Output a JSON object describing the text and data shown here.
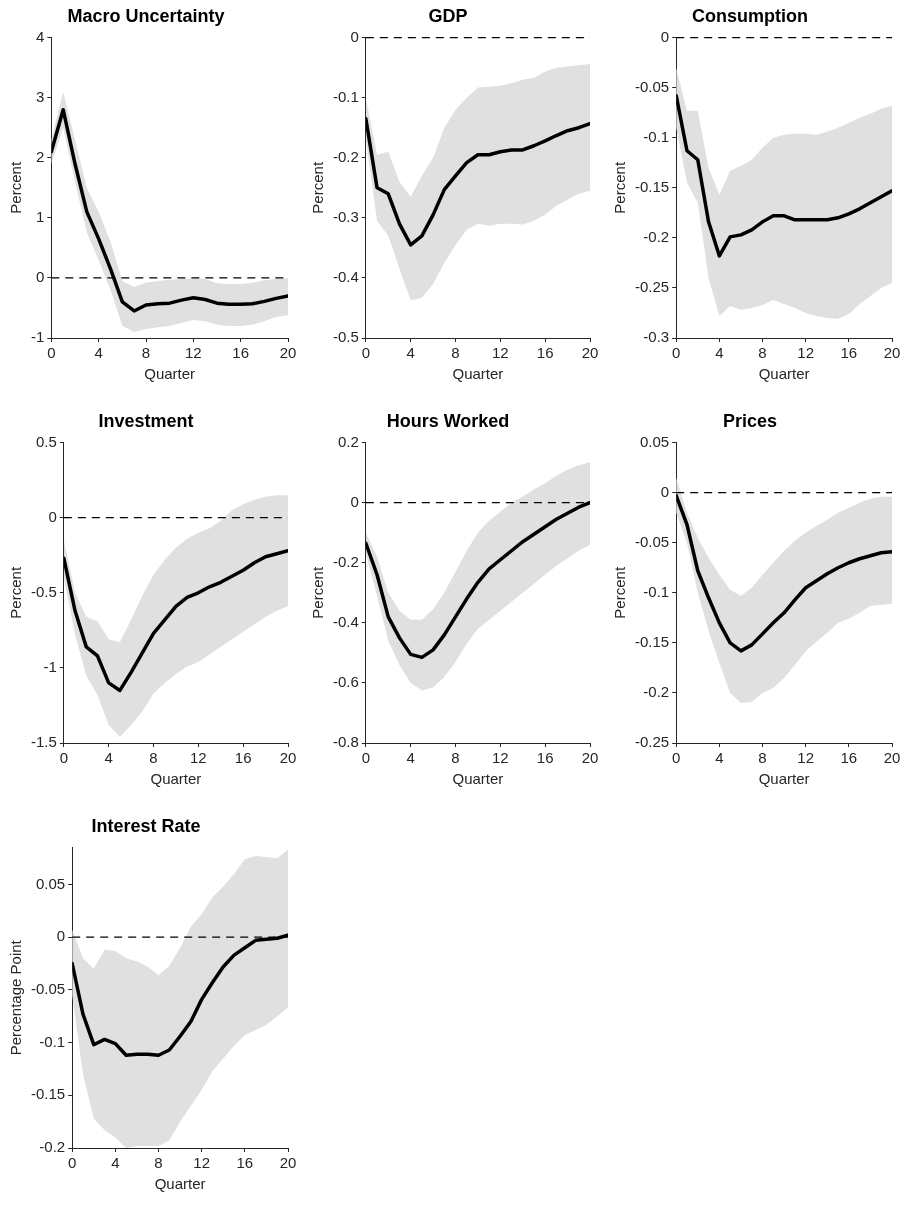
{
  "chart_data": [
    {
      "type": "line",
      "title": "Macro Uncertainty",
      "xlabel": "Quarter",
      "ylabel": "Percent",
      "x": [
        0,
        1,
        2,
        3,
        4,
        5,
        6,
        7,
        8,
        9,
        10,
        11,
        12,
        13,
        14,
        15,
        16,
        17,
        18,
        19,
        20
      ],
      "xlim": [
        0,
        20
      ],
      "xticks": [
        0,
        4,
        8,
        12,
        16,
        20
      ],
      "ylim": [
        -1,
        4
      ],
      "yticks": [
        -1,
        0,
        1,
        2,
        3,
        4
      ],
      "grid": false,
      "legend": false,
      "marker": "none",
      "line_style": "solid",
      "series": [
        {
          "color": "#000000",
          "values": [
            2.1,
            2.8,
            1.9,
            1.1,
            0.65,
            0.15,
            -0.4,
            -0.55,
            -0.45,
            -0.43,
            -0.42,
            -0.37,
            -0.33,
            -0.36,
            -0.42,
            -0.44,
            -0.44,
            -0.43,
            -0.39,
            -0.34,
            -0.3
          ],
          "upper": [
            2.3,
            3.1,
            2.3,
            1.5,
            1.1,
            0.6,
            -0.05,
            -0.15,
            -0.08,
            -0.05,
            -0.03,
            -0.02,
            -0.01,
            -0.02,
            -0.09,
            -0.1,
            -0.1,
            -0.08,
            -0.04,
            -0.02,
            0
          ],
          "lower": [
            1.9,
            2.5,
            1.6,
            0.75,
            0.3,
            -0.2,
            -0.8,
            -0.9,
            -0.85,
            -0.82,
            -0.8,
            -0.75,
            -0.7,
            -0.72,
            -0.78,
            -0.8,
            -0.8,
            -0.78,
            -0.72,
            -0.65,
            -0.62
          ]
        }
      ],
      "ref_lines": [
        {
          "axis": "y",
          "value": 0,
          "color": "#000000",
          "line_style": "dashed"
        }
      ]
    },
    {
      "type": "line",
      "title": "GDP",
      "xlabel": "Quarter",
      "ylabel": "Percent",
      "x": [
        0,
        1,
        2,
        3,
        4,
        5,
        6,
        7,
        8,
        9,
        10,
        11,
        12,
        13,
        14,
        15,
        16,
        17,
        18,
        19,
        20
      ],
      "xlim": [
        0,
        20
      ],
      "xticks": [
        0,
        4,
        8,
        12,
        16,
        20
      ],
      "ylim": [
        -0.5,
        0
      ],
      "yticks": [
        -0.5,
        -0.4,
        -0.3,
        -0.2,
        -0.1,
        0
      ],
      "grid": false,
      "legend": false,
      "marker": "none",
      "line_style": "solid",
      "series": [
        {
          "color": "#000000",
          "values": [
            -0.135,
            -0.25,
            -0.26,
            -0.31,
            -0.345,
            -0.33,
            -0.295,
            -0.253,
            -0.23,
            -0.208,
            -0.195,
            -0.195,
            -0.19,
            -0.187,
            -0.187,
            -0.18,
            -0.172,
            -0.163,
            -0.155,
            -0.15,
            -0.143
          ],
          "upper": [
            -0.1,
            -0.195,
            -0.19,
            -0.24,
            -0.265,
            -0.23,
            -0.2,
            -0.15,
            -0.12,
            -0.1,
            -0.083,
            -0.082,
            -0.08,
            -0.076,
            -0.07,
            -0.067,
            -0.057,
            -0.05,
            -0.048,
            -0.046,
            -0.044
          ],
          "lower": [
            -0.17,
            -0.305,
            -0.33,
            -0.385,
            -0.437,
            -0.433,
            -0.41,
            -0.375,
            -0.345,
            -0.32,
            -0.31,
            -0.313,
            -0.31,
            -0.31,
            -0.311,
            -0.305,
            -0.295,
            -0.28,
            -0.27,
            -0.26,
            -0.255
          ]
        }
      ],
      "ref_lines": [
        {
          "axis": "y",
          "value": 0,
          "color": "#000000",
          "line_style": "dashed"
        }
      ]
    },
    {
      "type": "line",
      "title": "Consumption",
      "xlabel": "Quarter",
      "ylabel": "Percent",
      "x": [
        0,
        1,
        2,
        3,
        4,
        5,
        6,
        7,
        8,
        9,
        10,
        11,
        12,
        13,
        14,
        15,
        16,
        17,
        18,
        19,
        20
      ],
      "xlim": [
        0,
        20
      ],
      "xticks": [
        0,
        4,
        8,
        12,
        16,
        20
      ],
      "ylim": [
        -0.3,
        0
      ],
      "yticks": [
        -0.3,
        -0.25,
        -0.2,
        -0.15,
        -0.1,
        -0.05,
        0
      ],
      "grid": false,
      "legend": false,
      "marker": "none",
      "line_style": "solid",
      "series": [
        {
          "color": "#000000",
          "values": [
            -0.058,
            -0.113,
            -0.122,
            -0.184,
            -0.218,
            -0.199,
            -0.197,
            -0.192,
            -0.184,
            -0.178,
            -0.178,
            -0.182,
            -0.182,
            -0.182,
            -0.182,
            -0.18,
            -0.176,
            -0.171,
            -0.165,
            -0.159,
            -0.153
          ],
          "upper": [
            -0.03,
            -0.073,
            -0.073,
            -0.13,
            -0.157,
            -0.133,
            -0.128,
            -0.122,
            -0.11,
            -0.1,
            -0.097,
            -0.096,
            -0.096,
            -0.097,
            -0.094,
            -0.09,
            -0.085,
            -0.08,
            -0.076,
            -0.071,
            -0.068
          ],
          "lower": [
            -0.09,
            -0.145,
            -0.165,
            -0.24,
            -0.278,
            -0.268,
            -0.272,
            -0.27,
            -0.267,
            -0.262,
            -0.266,
            -0.27,
            -0.275,
            -0.278,
            -0.28,
            -0.281,
            -0.276,
            -0.266,
            -0.258,
            -0.25,
            -0.245
          ]
        }
      ],
      "ref_lines": [
        {
          "axis": "y",
          "value": 0,
          "color": "#000000",
          "line_style": "dashed"
        }
      ]
    },
    {
      "type": "line",
      "title": "Investment",
      "xlabel": "Quarter",
      "ylabel": "Percent",
      "x": [
        0,
        1,
        2,
        3,
        4,
        5,
        6,
        7,
        8,
        9,
        10,
        11,
        12,
        13,
        14,
        15,
        16,
        17,
        18,
        19,
        20
      ],
      "xlim": [
        0,
        20
      ],
      "xticks": [
        0,
        4,
        8,
        12,
        16,
        20
      ],
      "ylim": [
        -1.5,
        0.5
      ],
      "yticks": [
        -1.5,
        -1,
        -0.5,
        0,
        0.5
      ],
      "grid": false,
      "legend": false,
      "marker": "none",
      "line_style": "solid",
      "series": [
        {
          "color": "#000000",
          "values": [
            -0.27,
            -0.62,
            -0.86,
            -0.92,
            -1.1,
            -1.15,
            -1.03,
            -0.9,
            -0.77,
            -0.68,
            -0.59,
            -0.53,
            -0.5,
            -0.46,
            -0.43,
            -0.39,
            -0.35,
            -0.3,
            -0.26,
            -0.24,
            -0.22
          ],
          "upper": [
            -0.15,
            -0.5,
            -0.66,
            -0.69,
            -0.81,
            -0.83,
            -0.68,
            -0.52,
            -0.38,
            -0.28,
            -0.2,
            -0.14,
            -0.1,
            -0.07,
            -0.02,
            0.05,
            0.09,
            0.12,
            0.14,
            0.15,
            0.15
          ],
          "lower": [
            -0.4,
            -0.78,
            -1.05,
            -1.18,
            -1.38,
            -1.46,
            -1.38,
            -1.29,
            -1.17,
            -1.1,
            -1.04,
            -0.99,
            -0.96,
            -0.91,
            -0.86,
            -0.81,
            -0.76,
            -0.71,
            -0.66,
            -0.62,
            -0.59
          ]
        }
      ],
      "ref_lines": [
        {
          "axis": "y",
          "value": 0,
          "color": "#000000",
          "line_style": "dashed"
        }
      ]
    },
    {
      "type": "line",
      "title": "Hours Worked",
      "xlabel": "Quarter",
      "ylabel": "Percent",
      "x": [
        0,
        1,
        2,
        3,
        4,
        5,
        6,
        7,
        8,
        9,
        10,
        11,
        12,
        13,
        14,
        15,
        16,
        17,
        18,
        19,
        20
      ],
      "xlim": [
        0,
        20
      ],
      "xticks": [
        0,
        4,
        8,
        12,
        16,
        20
      ],
      "ylim": [
        -0.8,
        0.2
      ],
      "yticks": [
        -0.8,
        -0.6,
        -0.4,
        -0.2,
        0,
        0.2
      ],
      "grid": false,
      "legend": false,
      "marker": "none",
      "line_style": "solid",
      "series": [
        {
          "color": "#000000",
          "values": [
            -0.135,
            -0.24,
            -0.38,
            -0.45,
            -0.505,
            -0.515,
            -0.49,
            -0.44,
            -0.38,
            -0.32,
            -0.265,
            -0.22,
            -0.19,
            -0.16,
            -0.13,
            -0.105,
            -0.08,
            -0.055,
            -0.035,
            -0.015,
            0
          ],
          "upper": [
            -0.1,
            -0.18,
            -0.3,
            -0.36,
            -0.39,
            -0.39,
            -0.355,
            -0.3,
            -0.23,
            -0.16,
            -0.1,
            -0.06,
            -0.03,
            0,
            0.02,
            0.045,
            0.065,
            0.09,
            0.11,
            0.125,
            0.135
          ],
          "lower": [
            -0.17,
            -0.31,
            -0.46,
            -0.54,
            -0.6,
            -0.625,
            -0.615,
            -0.58,
            -0.53,
            -0.47,
            -0.42,
            -0.39,
            -0.36,
            -0.33,
            -0.3,
            -0.27,
            -0.24,
            -0.21,
            -0.185,
            -0.16,
            -0.14
          ]
        }
      ],
      "ref_lines": [
        {
          "axis": "y",
          "value": 0,
          "color": "#000000",
          "line_style": "dashed"
        }
      ]
    },
    {
      "type": "line",
      "title": "Prices",
      "xlabel": "Quarter",
      "ylabel": "Percent",
      "x": [
        0,
        1,
        2,
        3,
        4,
        5,
        6,
        7,
        8,
        9,
        10,
        11,
        12,
        13,
        14,
        15,
        16,
        17,
        18,
        19,
        20
      ],
      "xlim": [
        0,
        20
      ],
      "xticks": [
        0,
        4,
        8,
        12,
        16,
        20
      ],
      "ylim": [
        -0.25,
        0.05
      ],
      "yticks": [
        -0.25,
        -0.2,
        -0.15,
        -0.1,
        -0.05,
        0,
        0.05
      ],
      "grid": false,
      "legend": false,
      "marker": "none",
      "line_style": "solid",
      "series": [
        {
          "color": "#000000",
          "values": [
            -0.003,
            -0.032,
            -0.078,
            -0.105,
            -0.13,
            -0.15,
            -0.158,
            -0.152,
            -0.141,
            -0.13,
            -0.12,
            -0.107,
            -0.095,
            -0.088,
            -0.081,
            -0.075,
            -0.07,
            -0.066,
            -0.063,
            -0.06,
            -0.059
          ],
          "upper": [
            0.015,
            -0.02,
            -0.045,
            -0.065,
            -0.082,
            -0.097,
            -0.103,
            -0.095,
            -0.082,
            -0.07,
            -0.058,
            -0.048,
            -0.04,
            -0.033,
            -0.027,
            -0.02,
            -0.015,
            -0.01,
            -0.006,
            -0.004,
            -0.004
          ],
          "lower": [
            -0.02,
            -0.05,
            -0.1,
            -0.138,
            -0.17,
            -0.2,
            -0.21,
            -0.209,
            -0.2,
            -0.195,
            -0.185,
            -0.172,
            -0.158,
            -0.149,
            -0.14,
            -0.13,
            -0.126,
            -0.12,
            -0.113,
            -0.112,
            -0.111
          ]
        }
      ],
      "ref_lines": [
        {
          "axis": "y",
          "value": 0,
          "color": "#000000",
          "line_style": "dashed"
        }
      ]
    },
    {
      "type": "line",
      "title": "Interest Rate",
      "xlabel": "Quarter",
      "ylabel": "Percentage Point",
      "x": [
        0,
        1,
        2,
        3,
        4,
        5,
        6,
        7,
        8,
        9,
        10,
        11,
        12,
        13,
        14,
        15,
        16,
        17,
        18,
        19,
        20
      ],
      "xlim": [
        0,
        20
      ],
      "xticks": [
        0,
        4,
        8,
        12,
        16,
        20
      ],
      "ylim": [
        -0.2,
        0.085
      ],
      "yticks": [
        -0.2,
        -0.15,
        -0.1,
        -0.05,
        0,
        0.05
      ],
      "grid": false,
      "legend": false,
      "marker": "none",
      "line_style": "solid",
      "series": [
        {
          "color": "#000000",
          "values": [
            -0.025,
            -0.073,
            -0.102,
            -0.097,
            -0.101,
            -0.112,
            -0.111,
            -0.111,
            -0.112,
            -0.107,
            -0.094,
            -0.08,
            -0.059,
            -0.043,
            -0.028,
            -0.017,
            -0.01,
            -0.003,
            -0.002,
            -0.001,
            0.002
          ],
          "upper": [
            0.007,
            -0.02,
            -0.03,
            -0.012,
            -0.013,
            -0.02,
            -0.023,
            -0.028,
            -0.036,
            -0.027,
            -0.01,
            0.01,
            0.022,
            0.038,
            0.048,
            0.06,
            0.074,
            0.077,
            0.076,
            0.075,
            0.083
          ],
          "lower": [
            -0.055,
            -0.13,
            -0.172,
            -0.183,
            -0.19,
            -0.2,
            -0.198,
            -0.198,
            -0.198,
            -0.193,
            -0.175,
            -0.16,
            -0.145,
            -0.127,
            -0.115,
            -0.103,
            -0.093,
            -0.088,
            -0.083,
            -0.075,
            -0.067
          ]
        }
      ],
      "ref_lines": [
        {
          "axis": "y",
          "value": 0,
          "color": "#000000",
          "line_style": "dashed"
        }
      ]
    }
  ]
}
